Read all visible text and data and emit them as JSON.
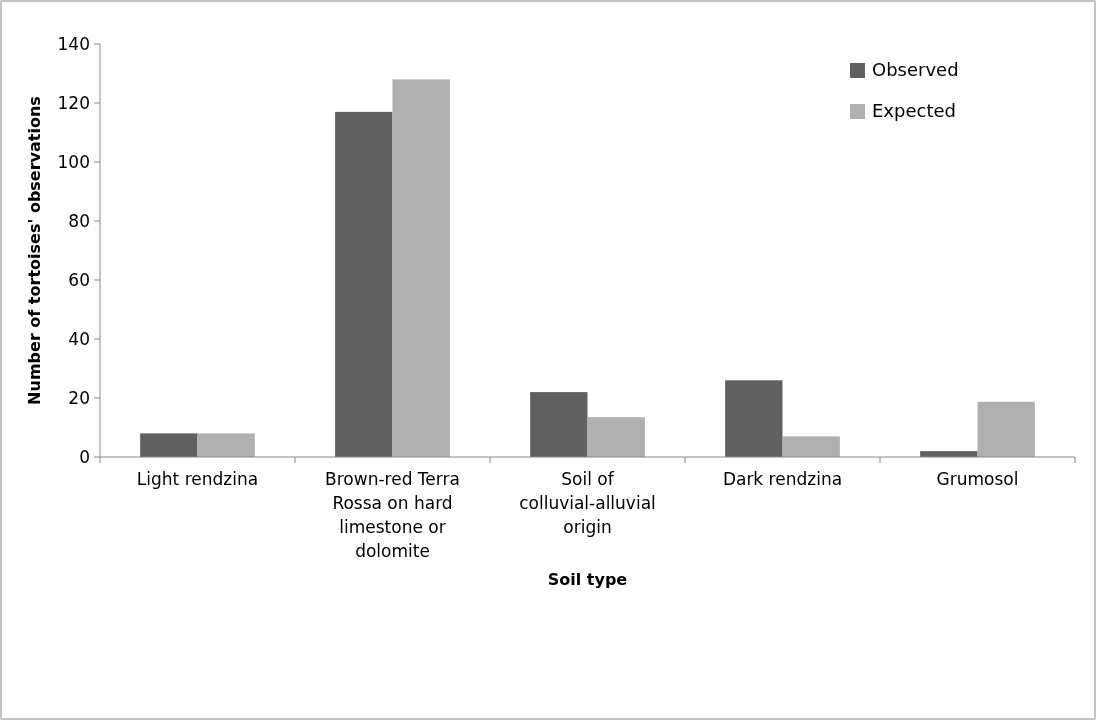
{
  "chart_data": {
    "type": "bar",
    "xlabel": "Soil type",
    "ylabel": "Number of tortoises' observations",
    "categories": [
      "Light rendzina",
      "Brown-red Terra Rossa on hard limestone or dolomite",
      "Soil of colluvial-alluvial origin",
      "Dark rendzina",
      "Grumosol"
    ],
    "series": [
      {
        "name": "Observed",
        "color": "#606060",
        "values": [
          8,
          117,
          22,
          26,
          2
        ]
      },
      {
        "name": "Expected",
        "color": "#b0b0b0",
        "values": [
          8,
          128,
          13.5,
          7,
          18.7
        ]
      }
    ],
    "ylim": [
      0,
      140
    ],
    "yticks": [
      0,
      20,
      40,
      60,
      80,
      100,
      120,
      140
    ],
    "grid": false,
    "legend": "top right"
  }
}
